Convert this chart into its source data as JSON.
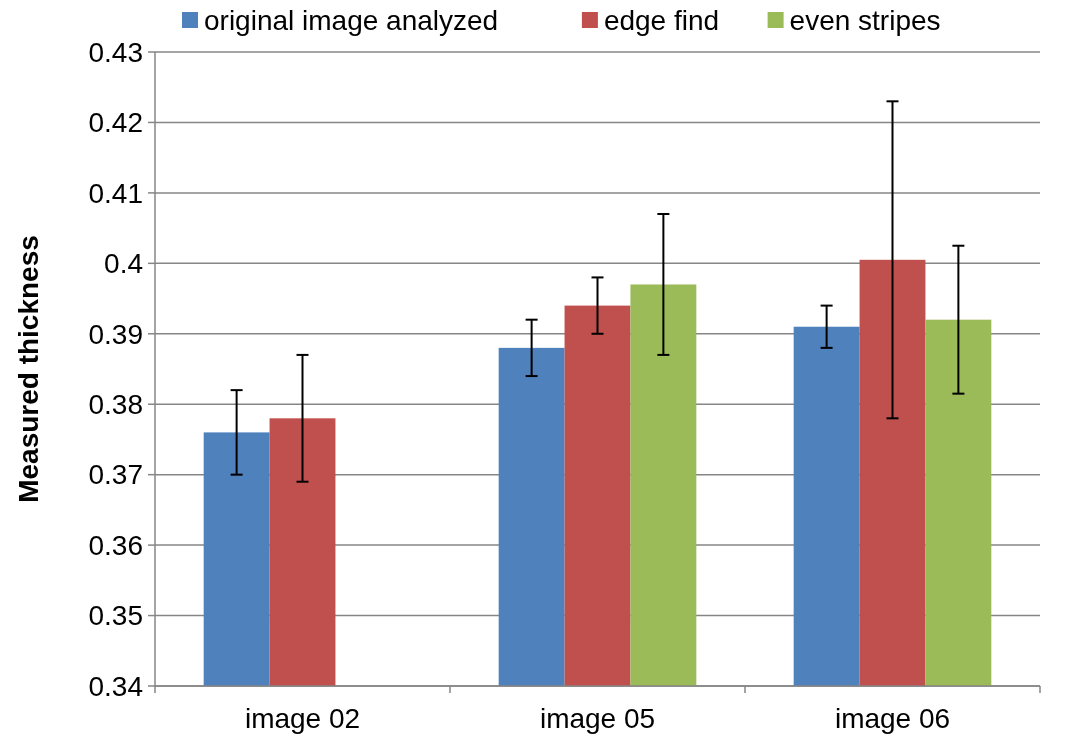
{
  "chart_data": {
    "type": "bar",
    "ylabel": "Measured thickness",
    "categories": [
      "image 02",
      "image 05",
      "image 06"
    ],
    "series": [
      {
        "name": "original image analyzed",
        "color": "#4f81bd",
        "values": [
          0.376,
          0.388,
          0.391
        ],
        "errors": [
          [
            0.37,
            0.382
          ],
          [
            0.384,
            0.392
          ],
          [
            0.388,
            0.394
          ]
        ]
      },
      {
        "name": "edge find",
        "color": "#c0504d",
        "values": [
          0.378,
          0.394,
          0.4005
        ],
        "errors": [
          [
            0.369,
            0.387
          ],
          [
            0.39,
            0.398
          ],
          [
            0.378,
            0.423
          ]
        ]
      },
      {
        "name": "even stripes",
        "color": "#9bbb59",
        "values": [
          null,
          0.397,
          0.392
        ],
        "errors": [
          null,
          [
            0.387,
            0.407
          ],
          [
            0.3815,
            0.4025
          ]
        ]
      }
    ],
    "ylim": [
      0.34,
      0.43
    ],
    "yticks": [
      0.34,
      0.35,
      0.36,
      0.37,
      0.38,
      0.39,
      {
        "value": 0.4,
        "label": "0.4"
      },
      0.41,
      0.42,
      0.43
    ],
    "grid": "y",
    "legend": "top"
  }
}
